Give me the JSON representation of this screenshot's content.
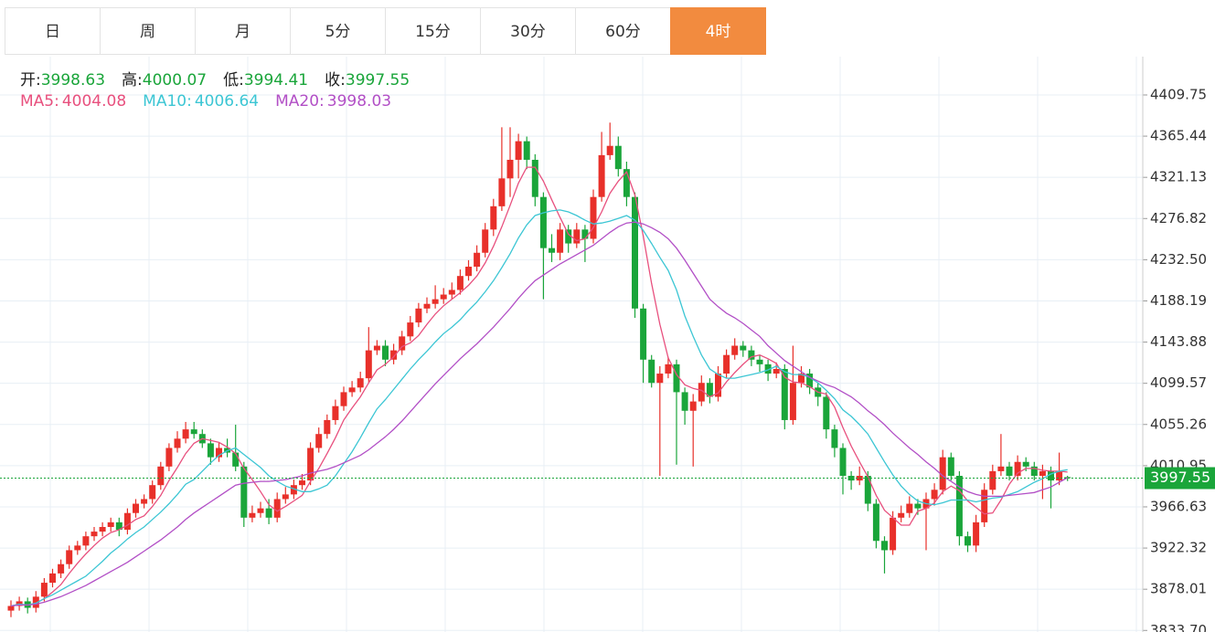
{
  "tabs": [
    "日",
    "周",
    "月",
    "5分",
    "15分",
    "30分",
    "60分",
    "4时"
  ],
  "active_tab": 7,
  "chart_data": {
    "type": "candlestick",
    "labels": {
      "open": "开:",
      "high": "高:",
      "low": "低:",
      "close": "收:"
    },
    "up_color": "#e8302a",
    "down_color": "#1aa53a",
    "last_color": "#1aa53a",
    "ylim": [
      3832,
      4451
    ],
    "yticks": [
      {
        "value": 3833.7,
        "label": "3833.70"
      },
      3878.01,
      3922.32,
      3966.63,
      4010.95,
      4055.26,
      4099.57,
      4143.88,
      4188.19,
      {
        "value": 4232.5,
        "label": "4232.50"
      },
      4276.82,
      4321.13,
      4365.44,
      4409.75
    ],
    "grid": true,
    "ohlc": [
      [
        3855,
        3866,
        3848,
        3860
      ],
      [
        3860,
        3870,
        3855,
        3865
      ],
      [
        3865,
        3869,
        3852,
        3858
      ],
      [
        3858,
        3876,
        3853,
        3870
      ],
      [
        3870,
        3890,
        3865,
        3885
      ],
      [
        3885,
        3900,
        3880,
        3895
      ],
      [
        3895,
        3910,
        3890,
        3905
      ],
      [
        3905,
        3925,
        3900,
        3920
      ],
      [
        3920,
        3930,
        3915,
        3925
      ],
      [
        3925,
        3940,
        3920,
        3935
      ],
      [
        3935,
        3945,
        3930,
        3940
      ],
      [
        3940,
        3950,
        3935,
        3945
      ],
      [
        3945,
        3955,
        3940,
        3950
      ],
      [
        3950,
        3955,
        3935,
        3942
      ],
      [
        3942,
        3965,
        3937,
        3960
      ],
      [
        3960,
        3975,
        3955,
        3970
      ],
      [
        3970,
        3980,
        3965,
        3975
      ],
      [
        3975,
        3995,
        3970,
        3990
      ],
      [
        3990,
        4015,
        3985,
        4010
      ],
      [
        4010,
        4035,
        4005,
        4030
      ],
      [
        4030,
        4048,
        4025,
        4040
      ],
      [
        4040,
        4058,
        4035,
        4050
      ],
      [
        4050,
        4058,
        4040,
        4045
      ],
      [
        4045,
        4050,
        4030,
        4035
      ],
      [
        4035,
        4040,
        4012,
        4020
      ],
      [
        4020,
        4036,
        4015,
        4030
      ],
      [
        4030,
        4040,
        4020,
        4025
      ],
      [
        4025,
        4055,
        4005,
        4010
      ],
      [
        4010,
        4015,
        3945,
        3955
      ],
      [
        3955,
        3968,
        3950,
        3960
      ],
      [
        3960,
        3972,
        3955,
        3965
      ],
      [
        3965,
        3975,
        3948,
        3955
      ],
      [
        3955,
        3982,
        3950,
        3975
      ],
      [
        3975,
        3988,
        3970,
        3980
      ],
      [
        3980,
        3996,
        3975,
        3990
      ],
      [
        3990,
        4002,
        3985,
        3995
      ],
      [
        3995,
        4036,
        3990,
        4030
      ],
      [
        4030,
        4052,
        4025,
        4045
      ],
      [
        4045,
        4066,
        4040,
        4060
      ],
      [
        4060,
        4082,
        4055,
        4075
      ],
      [
        4075,
        4096,
        4070,
        4090
      ],
      [
        4090,
        4102,
        4085,
        4095
      ],
      [
        4095,
        4112,
        4090,
        4105
      ],
      [
        4105,
        4160,
        4100,
        4135
      ],
      [
        4135,
        4146,
        4130,
        4140
      ],
      [
        4140,
        4146,
        4118,
        4125
      ],
      [
        4125,
        4142,
        4120,
        4135
      ],
      [
        4135,
        4156,
        4130,
        4150
      ],
      [
        4150,
        4172,
        4145,
        4165
      ],
      [
        4165,
        4186,
        4160,
        4180
      ],
      [
        4180,
        4192,
        4175,
        4185
      ],
      [
        4185,
        4205,
        4180,
        4190
      ],
      [
        4190,
        4202,
        4185,
        4195
      ],
      [
        4195,
        4208,
        4190,
        4200
      ],
      [
        4200,
        4222,
        4195,
        4215
      ],
      [
        4215,
        4232,
        4210,
        4225
      ],
      [
        4225,
        4248,
        4220,
        4240
      ],
      [
        4240,
        4272,
        4235,
        4265
      ],
      [
        4265,
        4298,
        4258,
        4290
      ],
      [
        4290,
        4375,
        4285,
        4320
      ],
      [
        4320,
        4375,
        4300,
        4340
      ],
      [
        4340,
        4368,
        4320,
        4360
      ],
      [
        4360,
        4365,
        4330,
        4340
      ],
      [
        4340,
        4346,
        4290,
        4300
      ],
      [
        4300,
        4305,
        4190,
        4245
      ],
      [
        4245,
        4260,
        4230,
        4240
      ],
      [
        4240,
        4272,
        4232,
        4265
      ],
      [
        4265,
        4270,
        4240,
        4250
      ],
      [
        4250,
        4272,
        4245,
        4265
      ],
      [
        4265,
        4270,
        4230,
        4255
      ],
      [
        4255,
        4308,
        4250,
        4300
      ],
      [
        4300,
        4370,
        4295,
        4345
      ],
      [
        4345,
        4380,
        4340,
        4355
      ],
      [
        4355,
        4365,
        4322,
        4330
      ],
      [
        4330,
        4338,
        4290,
        4300
      ],
      [
        4300,
        4305,
        4170,
        4180
      ],
      [
        4180,
        4185,
        4100,
        4125
      ],
      [
        4125,
        4130,
        4095,
        4100
      ],
      [
        4100,
        4118,
        4000,
        4110
      ],
      [
        4110,
        4128,
        4105,
        4120
      ],
      [
        4120,
        4125,
        4012,
        4090
      ],
      [
        4090,
        4095,
        4055,
        4070
      ],
      [
        4070,
        4088,
        4010,
        4080
      ],
      [
        4080,
        4108,
        4075,
        4100
      ],
      [
        4100,
        4105,
        4078,
        4085
      ],
      [
        4085,
        4118,
        4080,
        4110
      ],
      [
        4110,
        4136,
        4105,
        4130
      ],
      [
        4130,
        4148,
        4125,
        4140
      ],
      [
        4140,
        4145,
        4128,
        4135
      ],
      [
        4135,
        4140,
        4118,
        4125
      ],
      [
        4125,
        4130,
        4112,
        4120
      ],
      [
        4120,
        4125,
        4102,
        4110
      ],
      [
        4110,
        4122,
        4105,
        4115
      ],
      [
        4115,
        4120,
        4050,
        4060
      ],
      [
        4060,
        4140,
        4055,
        4100
      ],
      [
        4100,
        4118,
        4095,
        4110
      ],
      [
        4110,
        4115,
        4088,
        4095
      ],
      [
        4095,
        4100,
        4075,
        4085
      ],
      [
        4085,
        4090,
        4040,
        4050
      ],
      [
        4050,
        4055,
        4020,
        4030
      ],
      [
        4030,
        4035,
        3980,
        4000
      ],
      [
        4000,
        4005,
        3985,
        3995
      ],
      [
        3995,
        4010,
        3990,
        4000
      ],
      [
        4000,
        4005,
        3962,
        3970
      ],
      [
        3970,
        3975,
        3922,
        3930
      ],
      [
        3930,
        3935,
        3895,
        3920
      ],
      [
        3920,
        3962,
        3915,
        3955
      ],
      [
        3955,
        3968,
        3950,
        3960
      ],
      [
        3960,
        3978,
        3955,
        3970
      ],
      [
        3970,
        3975,
        3958,
        3965
      ],
      [
        3965,
        3982,
        3920,
        3975
      ],
      [
        3975,
        3992,
        3968,
        3985
      ],
      [
        3985,
        4028,
        3980,
        4020
      ],
      [
        4020,
        4025,
        3995,
        4000
      ],
      [
        4000,
        4005,
        3925,
        3935
      ],
      [
        3935,
        3940,
        3918,
        3925
      ],
      [
        3925,
        3958,
        3918,
        3950
      ],
      [
        3950,
        3992,
        3945,
        3985
      ],
      [
        3985,
        4012,
        3980,
        4005
      ],
      [
        4005,
        4045,
        4000,
        4010
      ],
      [
        4010,
        4015,
        3995,
        4000
      ],
      [
        4000,
        4022,
        3995,
        4015
      ],
      [
        4015,
        4020,
        4005,
        4010
      ],
      [
        4010,
        4015,
        3995,
        4000
      ],
      [
        4000,
        4012,
        3975,
        4005
      ],
      [
        4005,
        4010,
        3965,
        3995
      ],
      [
        3995,
        4025,
        3990,
        4005
      ],
      [
        3998.63,
        4000.07,
        3994.41,
        3997.55
      ]
    ],
    "series": [
      {
        "name": "MA5:",
        "color": "#e8507e",
        "values": [
          3860,
          3862,
          3861,
          3863,
          3868,
          3875,
          3883,
          3895,
          3906,
          3916,
          3925,
          3933,
          3939,
          3942,
          3947,
          3953,
          3957,
          3967,
          3979,
          3995,
          4009,
          4024,
          4035,
          4040,
          4038,
          4036,
          4031,
          4024,
          4008,
          3996,
          3983,
          3969,
          3962,
          3967,
          3973,
          3979,
          3994,
          4008,
          4024,
          4041,
          4060,
          4073,
          4085,
          4100,
          4114,
          4120,
          4128,
          4139,
          4143,
          4151,
          4163,
          4174,
          4183,
          4190,
          4197,
          4205,
          4215,
          4229,
          4247,
          4268,
          4291,
          4315,
          4332,
          4332,
          4317,
          4297,
          4278,
          4260,
          4253,
          4255,
          4267,
          4284,
          4304,
          4317,
          4327,
          4302,
          4258,
          4207,
          4163,
          4127,
          4109,
          4098,
          4094,
          4092,
          4085,
          4089,
          4101,
          4111,
          4120,
          4128,
          4130,
          4126,
          4121,
          4106,
          4101,
          4100,
          4096,
          4090,
          4088,
          4074,
          4052,
          4032,
          4015,
          3999,
          3979,
          3963,
          3955,
          3947,
          3947,
          3962,
          3965,
          3971,
          3983,
          3989,
          3984,
          3973,
          3966,
          3959,
          3960,
          3974,
          3991,
          4003,
          4008,
          4008,
          4006,
          4005,
          4005,
          4004.08
        ]
      },
      {
        "name": "MA10:",
        "color": "#3cc6d4",
        "values": [
          3860,
          3862,
          3861,
          3863,
          3868,
          3872,
          3877,
          3882,
          3887,
          3892,
          3900,
          3908,
          3917,
          3924,
          3932,
          3939,
          3945,
          3953,
          3961,
          3970,
          3980,
          3991,
          3996,
          4005,
          4014,
          4022,
          4027,
          4030,
          4023,
          4016,
          4009,
          4000,
          3994,
          3989,
          3986,
          3983,
          3983,
          3986,
          3990,
          4000,
          4013,
          4026,
          4041,
          4057,
          4072,
          4082,
          4093,
          4104,
          4115,
          4125,
          4134,
          4144,
          4153,
          4160,
          4168,
          4178,
          4187,
          4198,
          4210,
          4224,
          4239,
          4256,
          4270,
          4280,
          4283,
          4285,
          4286,
          4284,
          4280,
          4275,
          4271,
          4272,
          4274,
          4277,
          4280,
          4275,
          4264,
          4250,
          4235,
          4221,
          4200,
          4172,
          4150,
          4130,
          4115,
          4109,
          4105,
          4105,
          4107,
          4109,
          4111,
          4114,
          4118,
          4112,
          4109,
          4109,
          4106,
          4100,
          4092,
          4083,
          4071,
          4064,
          4055,
          4045,
          4030,
          4015,
          4001,
          3989,
          3980,
          3973,
          3970,
          3969,
          3971,
          3974,
          3974,
          3974,
          3972,
          3974,
          3976,
          3977,
          3980,
          3983,
          3988,
          3993,
          3997,
          4002,
          4005,
          4006.64
        ]
      },
      {
        "name": "MA20:",
        "color": "#b24fc6",
        "values": [
          3860,
          3861,
          3861,
          3862,
          3864,
          3867,
          3870,
          3874,
          3878,
          3882,
          3887,
          3892,
          3897,
          3902,
          3907,
          3913,
          3919,
          3925,
          3931,
          3938,
          3945,
          3953,
          3960,
          3966,
          3972,
          3978,
          3984,
          3990,
          3992,
          3993,
          3994,
          3994,
          3995,
          3996,
          3998,
          4000,
          4003,
          4005,
          4007,
          4010,
          4014,
          4018,
          4022,
          4028,
          4035,
          4042,
          4050,
          4059,
          4069,
          4079,
          4089,
          4099,
          4108,
          4117,
          4126,
          4134,
          4142,
          4151,
          4160,
          4170,
          4180,
          4191,
          4201,
          4210,
          4216,
          4222,
          4228,
          4233,
          4238,
          4243,
          4248,
          4255,
          4262,
          4268,
          4272,
          4273,
          4271,
          4267,
          4262,
          4255,
          4245,
          4232,
          4218,
          4204,
          4190,
          4182,
          4175,
          4170,
          4164,
          4157,
          4150,
          4140,
          4132,
          4124,
          4118,
          4112,
          4106,
          4102,
          4098,
          4095,
          4090,
          4085,
          4078,
          4070,
          4063,
          4055,
          4046,
          4038,
          4030,
          4023,
          4015,
          4008,
          4000,
          3994,
          3988,
          3983,
          3980,
          3978,
          3978,
          3978,
          3979,
          3980,
          3981,
          3982,
          3985,
          3988,
          3993,
          3998.03
        ]
      }
    ]
  }
}
